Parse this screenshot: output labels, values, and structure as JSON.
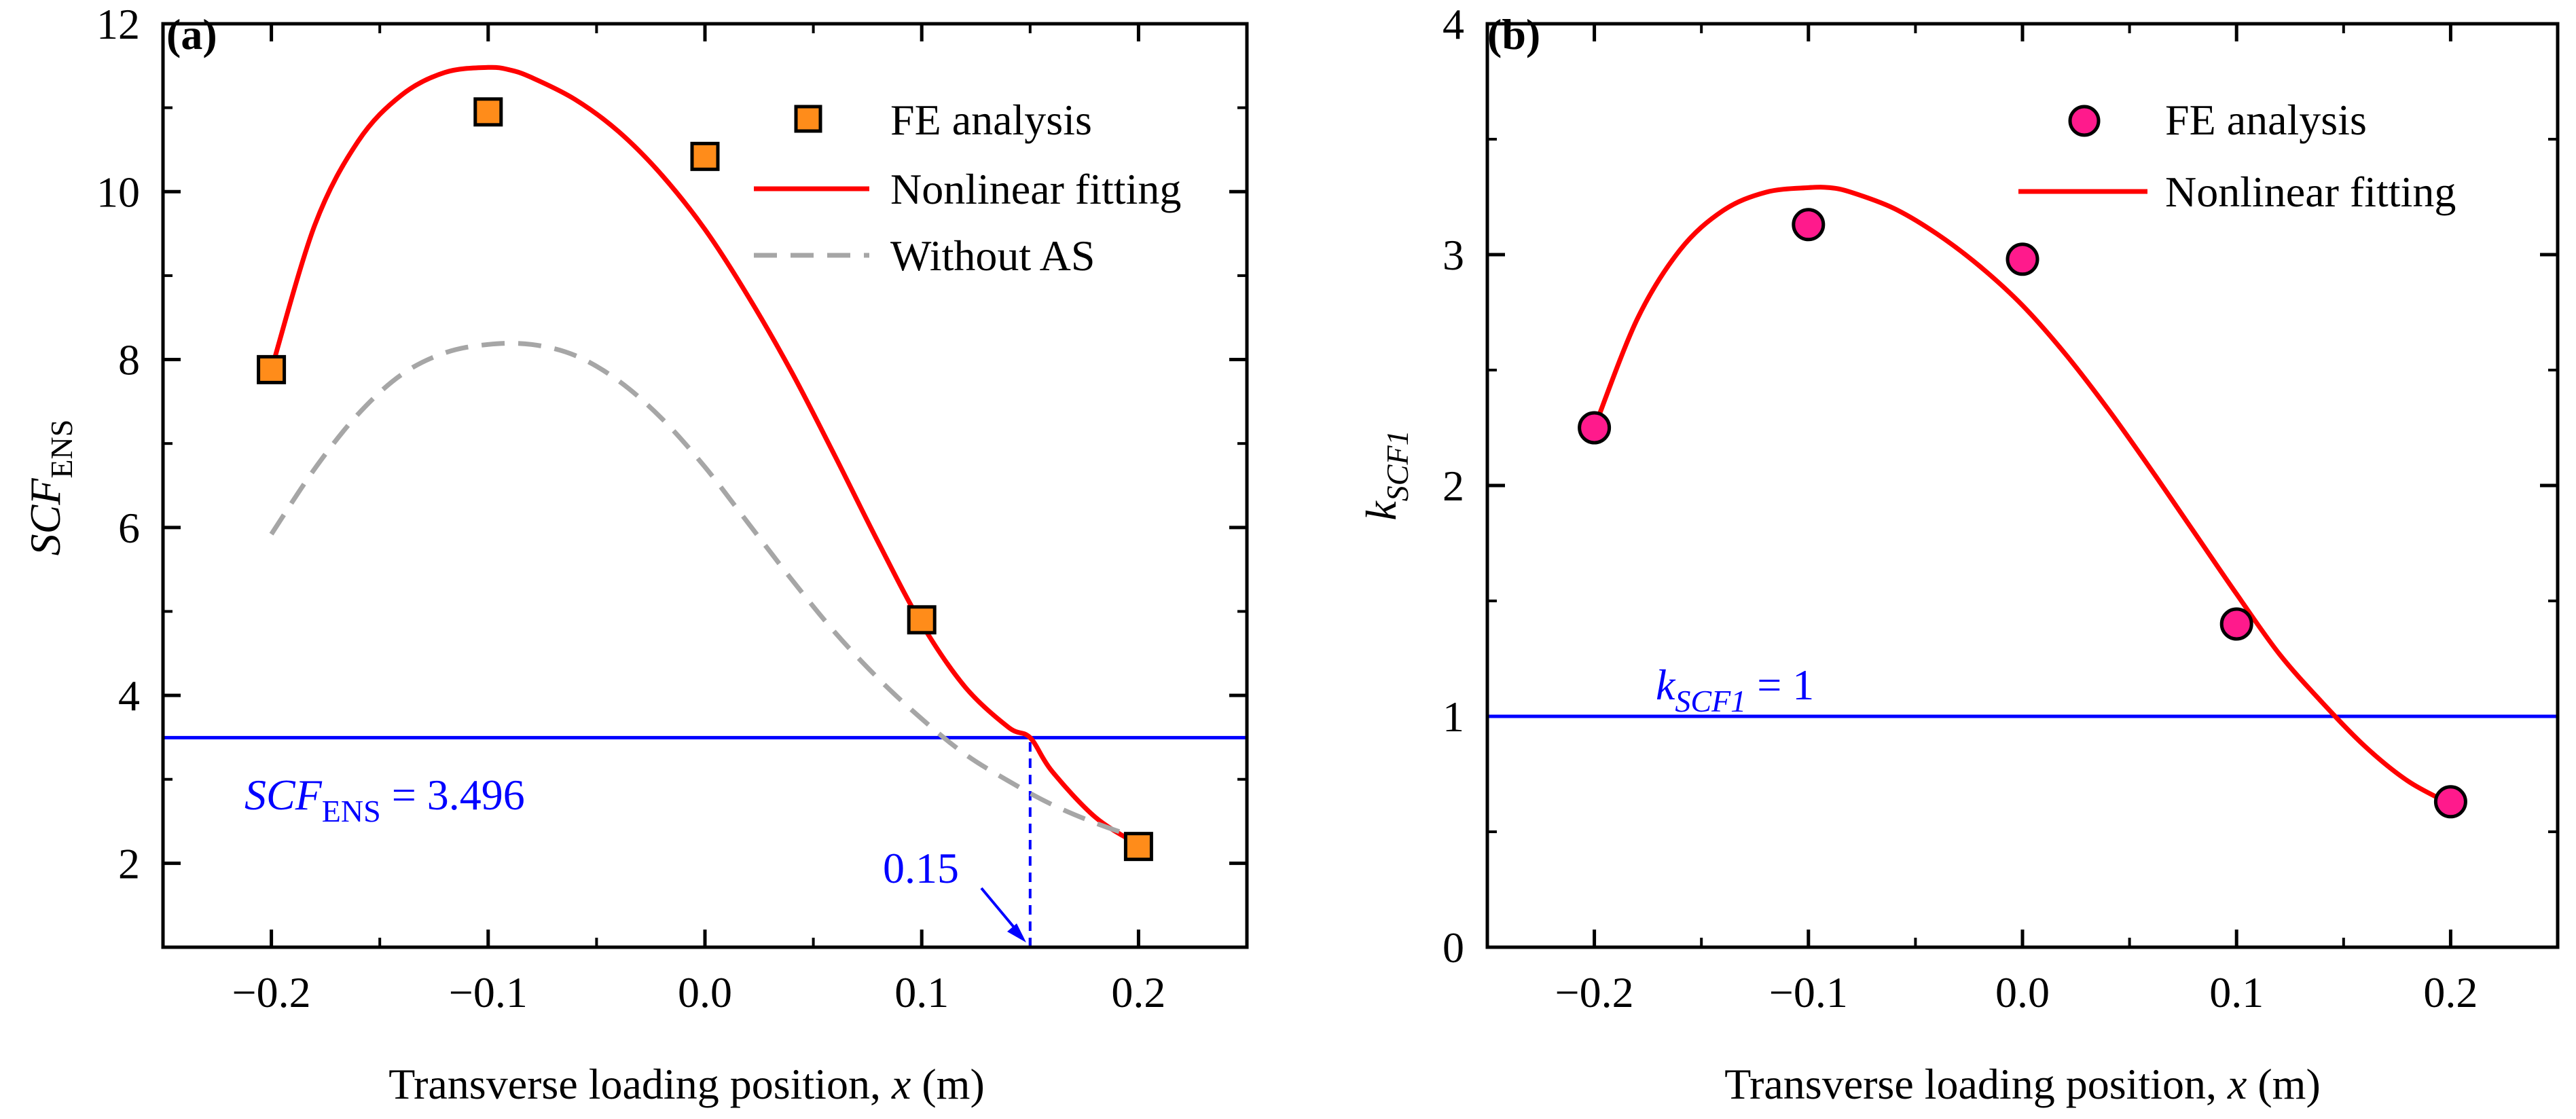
{
  "chart_data": [
    {
      "panel": "(a)",
      "type": "scatter",
      "xlabel": {
        "prefix": "Transverse loading position, ",
        "var": "x",
        "suffix": " (m)"
      },
      "ylabel": {
        "main": "SCF",
        "sub": "ENS"
      },
      "xlim": [
        -0.25,
        0.25
      ],
      "ylim": [
        1.0,
        12.0
      ],
      "xticks": [
        -0.2,
        -0.1,
        0.0,
        0.1,
        0.2
      ],
      "xtick_labels": [
        "−0.2",
        "−0.1",
        "0.0",
        "0.1",
        "0.2"
      ],
      "yticks": [
        2,
        4,
        6,
        8,
        10,
        12
      ],
      "ytick_labels": [
        "2",
        "4",
        "6",
        "8",
        "10",
        "12"
      ],
      "series": [
        {
          "name": "FE analysis",
          "kind": "marker",
          "marker": "square",
          "color": "#ff8c1a",
          "x": [
            -0.2,
            -0.1,
            0.0,
            0.1,
            0.2
          ],
          "y": [
            7.88,
            10.95,
            10.42,
            4.9,
            2.2
          ]
        },
        {
          "name": "Nonlinear fitting",
          "kind": "line",
          "color": "#ff0000",
          "dash": "solid",
          "x": [
            -0.2,
            -0.18,
            -0.16,
            -0.14,
            -0.12,
            -0.1,
            -0.09,
            -0.08,
            -0.06,
            -0.04,
            -0.02,
            0.0,
            0.02,
            0.04,
            0.06,
            0.08,
            0.1,
            0.12,
            0.14,
            0.15,
            0.16,
            0.18,
            0.2
          ],
          "y": [
            7.88,
            9.6,
            10.6,
            11.15,
            11.42,
            11.48,
            11.45,
            11.36,
            11.1,
            10.72,
            10.2,
            9.55,
            8.75,
            7.85,
            6.85,
            5.82,
            4.85,
            4.1,
            3.62,
            3.496,
            3.1,
            2.55,
            2.22
          ]
        },
        {
          "name": "Without AS",
          "kind": "line",
          "color": "#a6a6a6",
          "dash": "dashed",
          "x": [
            -0.2,
            -0.18,
            -0.16,
            -0.14,
            -0.12,
            -0.1,
            -0.08,
            -0.06,
            -0.04,
            -0.02,
            0.0,
            0.02,
            0.04,
            0.06,
            0.08,
            0.1,
            0.12,
            0.14,
            0.16,
            0.18,
            0.2
          ],
          "y": [
            5.92,
            6.7,
            7.35,
            7.82,
            8.08,
            8.18,
            8.18,
            8.05,
            7.75,
            7.3,
            6.72,
            6.05,
            5.38,
            4.75,
            4.2,
            3.72,
            3.3,
            2.98,
            2.7,
            2.48,
            2.3
          ]
        }
      ],
      "legend": {
        "position": "top-right",
        "entries": [
          "FE analysis",
          "Nonlinear fitting",
          "Without AS"
        ]
      },
      "hline": {
        "y": 3.496,
        "color": "#0000ff"
      },
      "vline": {
        "x": 0.15,
        "from_y": 1.0,
        "to_y": 3.496,
        "color": "#0000ff",
        "dash": "dashed"
      },
      "annotations": [
        {
          "id": "hline-label",
          "main": "SCF",
          "sub": "ENS",
          "rest": " = 3.496",
          "color": "#0000ff"
        },
        {
          "id": "vline-label",
          "text": "0.15",
          "color": "#0000ff"
        }
      ]
    },
    {
      "panel": "(b)",
      "type": "scatter",
      "xlabel": {
        "prefix": "Transverse loading position, ",
        "var": "x",
        "suffix": " (m)"
      },
      "ylabel": {
        "main": "k",
        "sub": "SCF1"
      },
      "xlim": [
        -0.25,
        0.25
      ],
      "ylim": [
        0,
        4
      ],
      "xticks": [
        -0.2,
        -0.1,
        0.0,
        0.1,
        0.2
      ],
      "xtick_labels": [
        "−0.2",
        "−0.1",
        "0.0",
        "0.1",
        "0.2"
      ],
      "yticks": [
        0,
        1,
        2,
        3,
        4
      ],
      "ytick_labels": [
        "0",
        "1",
        "2",
        "3",
        "4"
      ],
      "series": [
        {
          "name": "FE analysis",
          "kind": "marker",
          "marker": "circle",
          "color": "#ff1a8c",
          "x": [
            -0.2,
            -0.1,
            0.0,
            0.1,
            0.2
          ],
          "y": [
            2.25,
            3.13,
            2.98,
            1.4,
            0.63
          ]
        },
        {
          "name": "Nonlinear fitting",
          "kind": "line",
          "color": "#ff0000",
          "dash": "solid",
          "x": [
            -0.2,
            -0.18,
            -0.16,
            -0.14,
            -0.12,
            -0.1,
            -0.09,
            -0.08,
            -0.06,
            -0.04,
            -0.02,
            0.0,
            0.02,
            0.04,
            0.06,
            0.08,
            0.1,
            0.12,
            0.14,
            0.16,
            0.18,
            0.2
          ],
          "y": [
            2.25,
            2.72,
            3.02,
            3.19,
            3.27,
            3.29,
            3.29,
            3.27,
            3.2,
            3.09,
            2.95,
            2.78,
            2.57,
            2.33,
            2.07,
            1.8,
            1.53,
            1.27,
            1.06,
            0.87,
            0.72,
            0.62
          ]
        }
      ],
      "legend": {
        "position": "top-right",
        "entries": [
          "FE analysis",
          "Nonlinear fitting"
        ]
      },
      "hline": {
        "y": 1.0,
        "color": "#0000ff"
      },
      "annotations": [
        {
          "id": "hline-label",
          "main": "k",
          "sub": "SCF1",
          "rest": " = 1",
          "color": "#0000ff"
        }
      ]
    }
  ]
}
